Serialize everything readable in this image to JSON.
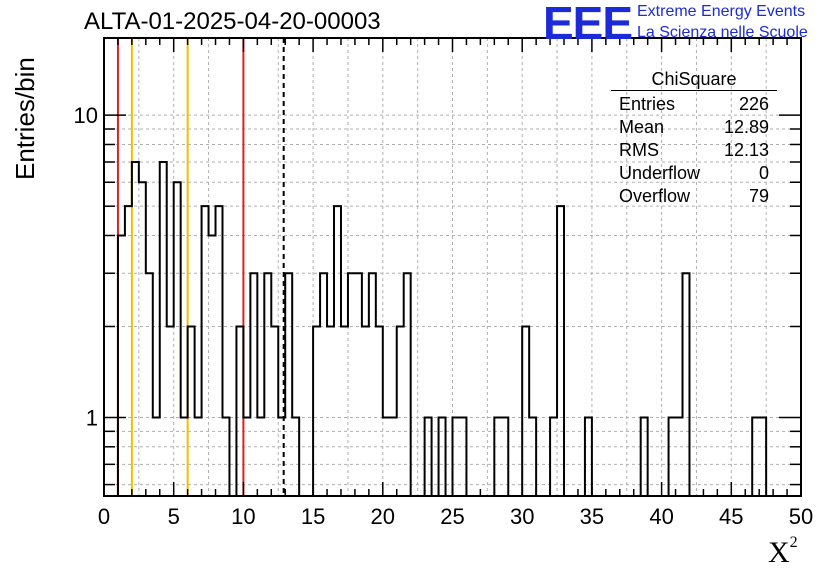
{
  "title": "ALTA-01-2025-04-20-00003",
  "ylabel": "Entries/bin",
  "xlabel": "X",
  "xlabel_sup": "2",
  "logo": {
    "mark": "EEE",
    "line1": "Extreme Energy Events",
    "line2": "La Scienza nelle Scuole",
    "color": "#1c2bd8"
  },
  "stats": {
    "title": "ChiSquare",
    "rows": [
      {
        "label": "Entries",
        "value": "226"
      },
      {
        "label": "Mean",
        "value": "12.89"
      },
      {
        "label": "RMS",
        "value": "12.13"
      },
      {
        "label": "Underflow",
        "value": "0"
      },
      {
        "label": "Overflow",
        "value": "79"
      }
    ]
  },
  "chart_data": {
    "type": "histogram",
    "x_range": [
      0,
      50
    ],
    "y_range": [
      0.55,
      18
    ],
    "y_scale": "log",
    "grid": true,
    "bin_width": 0.5,
    "x_ticks": [
      0,
      5,
      10,
      15,
      20,
      25,
      30,
      35,
      40,
      45,
      50
    ],
    "y_ticks": [
      1,
      10
    ],
    "bin_starts": [
      1.0,
      1.5,
      2.0,
      2.5,
      3.0,
      3.5,
      4.0,
      4.5,
      5.0,
      5.5,
      6.0,
      6.5,
      7.0,
      7.5,
      8.0,
      8.5,
      9.0,
      9.5,
      10.0,
      10.5,
      11.0,
      11.5,
      12.0,
      12.5,
      13.0,
      13.5,
      14.0,
      14.5,
      15.0,
      15.5,
      16.0,
      16.5,
      17.0,
      17.5,
      18.0,
      18.5,
      19.0,
      19.5,
      20.0,
      20.5,
      21.0,
      21.5,
      22.0,
      22.5,
      23.0,
      23.5,
      24.0,
      24.5,
      25.0,
      25.5,
      26.0,
      26.5,
      27.0,
      27.5,
      28.0,
      28.5,
      29.0,
      29.5,
      30.0,
      30.5,
      31.0,
      31.5,
      32.0,
      32.5,
      33.0,
      33.5,
      34.0,
      34.5,
      35.0,
      35.5,
      36.0,
      36.5,
      37.0,
      37.5,
      38.0,
      38.5,
      39.0,
      39.5,
      40.0,
      40.5,
      41.0,
      41.5,
      42.0,
      42.5,
      43.0,
      43.5,
      44.0,
      44.5,
      45.0,
      45.5,
      46.0,
      46.5,
      47.0,
      47.5
    ],
    "counts": [
      4,
      5,
      7,
      6,
      3,
      1,
      7,
      2,
      6,
      1,
      2,
      1,
      5,
      4,
      5,
      1,
      0,
      2,
      1,
      3,
      1,
      3,
      2,
      1,
      3,
      1,
      0,
      0,
      2,
      3,
      2,
      5,
      2,
      3,
      3,
      2,
      3,
      2,
      1,
      1,
      2,
      3,
      0,
      0,
      1,
      0,
      1,
      0,
      1,
      1,
      0,
      0,
      0,
      0,
      1,
      1,
      0,
      0,
      2,
      1,
      0,
      0,
      1,
      5,
      0,
      0,
      0,
      1,
      0,
      0,
      0,
      0,
      0,
      0,
      0,
      1,
      0,
      0,
      0,
      1,
      1,
      3,
      0,
      0,
      0,
      0,
      0,
      0,
      0,
      0,
      0,
      1,
      1,
      0
    ],
    "vertical_lines": [
      {
        "x": 1,
        "color": "#e02020",
        "style": "solid"
      },
      {
        "x": 2,
        "color": "#f0c000",
        "style": "solid"
      },
      {
        "x": 6,
        "color": "#f0c000",
        "style": "solid"
      },
      {
        "x": 10,
        "color": "#e02020",
        "style": "solid"
      },
      {
        "x": 12.89,
        "color": "#000000",
        "style": "dashed"
      }
    ]
  }
}
